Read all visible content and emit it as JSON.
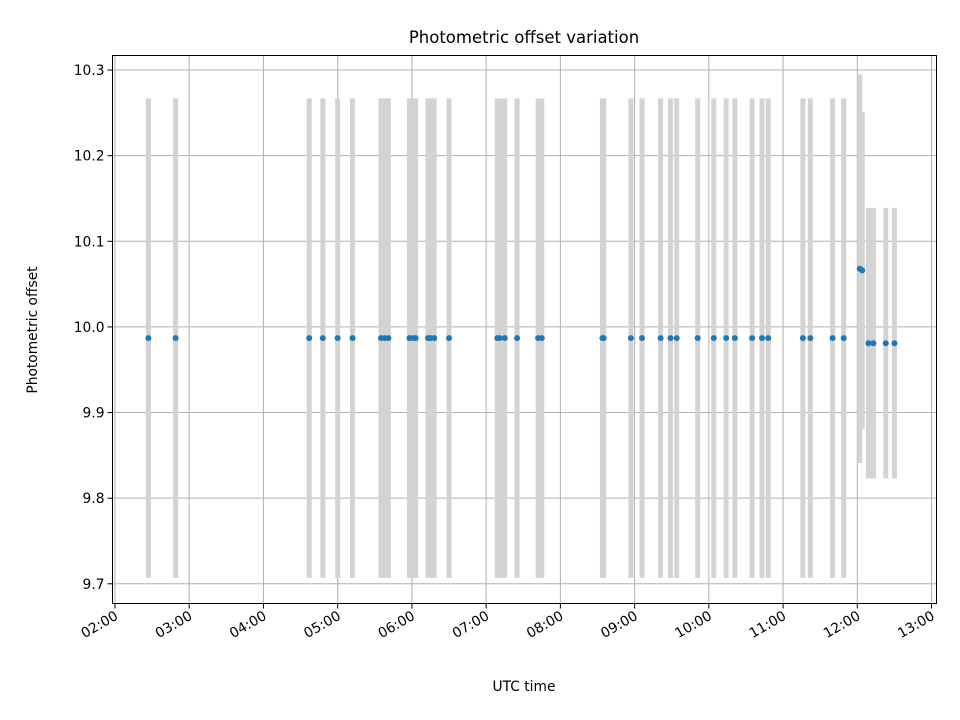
{
  "chart_data": {
    "type": "scatter",
    "title": "Photometric offset variation",
    "xlabel": "UTC time",
    "ylabel": "Photometric offset",
    "xlim": [
      "01:58",
      "13:04"
    ],
    "ylim": [
      9.677,
      10.317
    ],
    "x_ticks": [
      "02:00",
      "03:00",
      "04:00",
      "05:00",
      "06:00",
      "07:00",
      "08:00",
      "09:00",
      "10:00",
      "11:00",
      "12:00",
      "13:00"
    ],
    "y_ticks": [
      "9.7",
      "9.8",
      "9.9",
      "10.0",
      "10.1",
      "10.2",
      "10.3"
    ],
    "grid": true,
    "colors": {
      "points": "#1f77b4",
      "error_bars": "#d3d3d3"
    },
    "series": [
      {
        "x": [
          "02:27",
          "02:49",
          "04:37",
          "04:48",
          "05:00",
          "05:12",
          "05:35",
          "05:38",
          "05:41",
          "05:58",
          "06:01",
          "06:03",
          "06:13",
          "06:15",
          "06:18",
          "06:30",
          "07:09",
          "07:11",
          "07:15",
          "07:25",
          "07:42",
          "07:45",
          "08:34",
          "08:35",
          "08:57",
          "09:06",
          "09:21",
          "09:29",
          "09:34",
          "09:51",
          "10:04",
          "10:14",
          "10:21",
          "10:35",
          "10:43",
          "10:48",
          "11:16",
          "11:22",
          "11:40",
          "11:49",
          "12:02",
          "12:04",
          "12:09",
          "12:13",
          "12:23",
          "12:30"
        ],
        "y": [
          9.987,
          9.987,
          9.987,
          9.987,
          9.987,
          9.987,
          9.987,
          9.987,
          9.987,
          9.987,
          9.987,
          9.987,
          9.987,
          9.987,
          9.987,
          9.987,
          9.987,
          9.987,
          9.987,
          9.987,
          9.987,
          9.987,
          9.987,
          9.987,
          9.987,
          9.987,
          9.987,
          9.987,
          9.987,
          9.987,
          9.987,
          9.987,
          9.987,
          9.987,
          9.987,
          9.987,
          9.987,
          9.987,
          9.987,
          9.987,
          10.068,
          10.066,
          9.981,
          9.981,
          9.981,
          9.981
        ],
        "yerr": [
          0.28,
          0.28,
          0.28,
          0.28,
          0.28,
          0.28,
          0.28,
          0.28,
          0.28,
          0.28,
          0.28,
          0.28,
          0.28,
          0.28,
          0.28,
          0.28,
          0.28,
          0.28,
          0.28,
          0.28,
          0.28,
          0.28,
          0.28,
          0.28,
          0.28,
          0.28,
          0.28,
          0.28,
          0.28,
          0.28,
          0.28,
          0.28,
          0.28,
          0.28,
          0.28,
          0.28,
          0.28,
          0.28,
          0.28,
          0.28,
          0.227,
          0.185,
          0.158,
          0.158,
          0.158,
          0.158
        ]
      }
    ]
  }
}
